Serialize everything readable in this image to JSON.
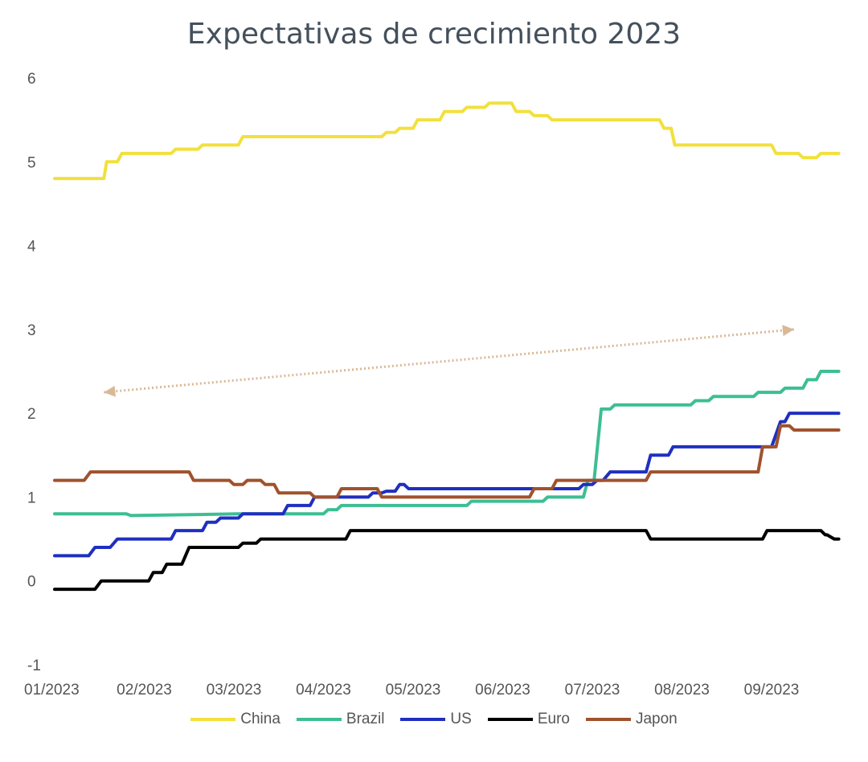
{
  "chart_data": {
    "type": "line",
    "title": "Expectativas de crecimiento 2023",
    "xlabel": "",
    "ylabel": "",
    "ylim": [
      -1,
      6
    ],
    "yticks": [
      "6",
      "5",
      "4",
      "3",
      "2",
      "1",
      "0",
      "-1"
    ],
    "xticks": [
      "01/2023",
      "02/2023",
      "03/2023",
      "04/2023",
      "05/2023",
      "06/2023",
      "07/2023",
      "08/2023",
      "09/2023"
    ],
    "xlim": [
      0,
      8.75
    ],
    "grid": false,
    "legend_position": "bottom",
    "series": [
      {
        "name": "China",
        "color": "#f2e03c",
        "x": [
          0,
          0.55,
          0.58,
          0.7,
          0.75,
          1.3,
          1.35,
          1.6,
          1.65,
          2.05,
          2.1,
          3.65,
          3.7,
          3.8,
          3.85,
          4.0,
          4.05,
          4.3,
          4.35,
          4.55,
          4.6,
          4.8,
          4.85,
          5.1,
          5.15,
          5.3,
          5.35,
          5.5,
          5.55,
          6.75,
          6.8,
          6.88,
          6.92,
          7.6,
          7.65,
          8.0,
          8.05,
          8.3,
          8.35,
          8.5,
          8.55,
          8.75
        ],
        "y": [
          4.8,
          4.8,
          5.0,
          5.0,
          5.1,
          5.1,
          5.15,
          5.15,
          5.2,
          5.2,
          5.3,
          5.3,
          5.35,
          5.35,
          5.4,
          5.4,
          5.5,
          5.5,
          5.6,
          5.6,
          5.65,
          5.65,
          5.7,
          5.7,
          5.6,
          5.6,
          5.55,
          5.55,
          5.5,
          5.5,
          5.4,
          5.4,
          5.2,
          5.2,
          5.2,
          5.2,
          5.1,
          5.1,
          5.05,
          5.05,
          5.1,
          5.1
        ]
      },
      {
        "name": "Brazil",
        "color": "#3dbe94",
        "x": [
          0,
          0.8,
          0.85,
          2.05,
          2.1,
          3.0,
          3.05,
          3.15,
          3.2,
          4.6,
          4.65,
          5.45,
          5.5,
          5.9,
          5.95,
          6.02,
          6.1,
          6.2,
          6.25,
          7.1,
          7.15,
          7.3,
          7.35,
          7.8,
          7.85,
          8.1,
          8.15,
          8.35,
          8.4,
          8.5,
          8.55,
          8.75
        ],
        "y": [
          0.8,
          0.8,
          0.78,
          0.8,
          0.8,
          0.8,
          0.85,
          0.85,
          0.9,
          0.9,
          0.95,
          0.95,
          1.0,
          1.0,
          1.2,
          1.2,
          2.05,
          2.05,
          2.1,
          2.1,
          2.15,
          2.15,
          2.2,
          2.2,
          2.25,
          2.25,
          2.3,
          2.3,
          2.4,
          2.4,
          2.5,
          2.5
        ]
      },
      {
        "name": "US",
        "color": "#1f2fc0",
        "x": [
          0,
          0.38,
          0.45,
          0.62,
          0.7,
          1.3,
          1.35,
          1.65,
          1.7,
          1.8,
          1.85,
          2.05,
          2.1,
          2.55,
          2.6,
          2.85,
          2.9,
          3.5,
          3.55,
          3.65,
          3.7,
          3.8,
          3.85,
          3.9,
          3.95,
          5.55,
          5.6,
          5.85,
          5.9,
          6.0,
          6.05,
          6.12,
          6.2,
          6.5,
          6.55,
          6.6,
          6.65,
          6.85,
          6.9,
          7.2,
          7.25,
          7.55,
          7.6,
          8.0,
          8.1,
          8.15,
          8.2,
          8.75
        ],
        "y": [
          0.3,
          0.3,
          0.4,
          0.4,
          0.5,
          0.5,
          0.6,
          0.6,
          0.7,
          0.7,
          0.75,
          0.75,
          0.8,
          0.8,
          0.9,
          0.9,
          1.0,
          1.0,
          1.05,
          1.05,
          1.07,
          1.07,
          1.15,
          1.15,
          1.1,
          1.1,
          1.1,
          1.1,
          1.15,
          1.15,
          1.2,
          1.2,
          1.3,
          1.3,
          1.3,
          1.3,
          1.5,
          1.5,
          1.6,
          1.6,
          1.6,
          1.6,
          1.6,
          1.6,
          1.9,
          1.9,
          2.0,
          2.0
        ]
      },
      {
        "name": "Euro",
        "color": "#000000",
        "x": [
          0,
          0.45,
          0.52,
          1.05,
          1.1,
          1.2,
          1.25,
          1.42,
          1.5,
          2.05,
          2.1,
          2.25,
          2.3,
          3.25,
          3.3,
          6.6,
          6.65,
          7.45,
          7.5,
          7.9,
          7.95,
          8.55,
          8.6,
          8.62,
          8.7,
          8.75
        ],
        "y": [
          -0.1,
          -0.1,
          0.0,
          0.0,
          0.1,
          0.1,
          0.2,
          0.2,
          0.4,
          0.4,
          0.45,
          0.45,
          0.5,
          0.5,
          0.6,
          0.6,
          0.5,
          0.5,
          0.5,
          0.5,
          0.6,
          0.6,
          0.55,
          0.55,
          0.5,
          0.5
        ]
      },
      {
        "name": "Japon",
        "color": "#a0522d",
        "x": [
          0,
          0.33,
          0.4,
          1.5,
          1.55,
          1.95,
          2.0,
          2.1,
          2.15,
          2.3,
          2.35,
          2.45,
          2.5,
          2.85,
          2.9,
          3.15,
          3.2,
          3.25,
          3.3,
          3.6,
          3.65,
          5.3,
          5.35,
          5.55,
          5.6,
          6.6,
          6.65,
          7.55,
          7.6,
          7.85,
          7.9,
          8.05,
          8.1,
          8.2,
          8.25,
          8.75
        ],
        "y": [
          1.2,
          1.2,
          1.3,
          1.3,
          1.2,
          1.2,
          1.15,
          1.15,
          1.2,
          1.2,
          1.15,
          1.15,
          1.05,
          1.05,
          1.0,
          1.0,
          1.1,
          1.1,
          1.1,
          1.1,
          1.0,
          1.0,
          1.1,
          1.1,
          1.2,
          1.2,
          1.3,
          1.3,
          1.3,
          1.3,
          1.6,
          1.6,
          1.85,
          1.85,
          1.8,
          1.8
        ]
      }
    ],
    "annotations": [
      {
        "type": "double-arrow",
        "color": "#d9b896",
        "style": "dotted",
        "from": {
          "x": 0.55,
          "y": 2.25
        },
        "to": {
          "x": 8.25,
          "y": 3.0
        }
      }
    ]
  }
}
